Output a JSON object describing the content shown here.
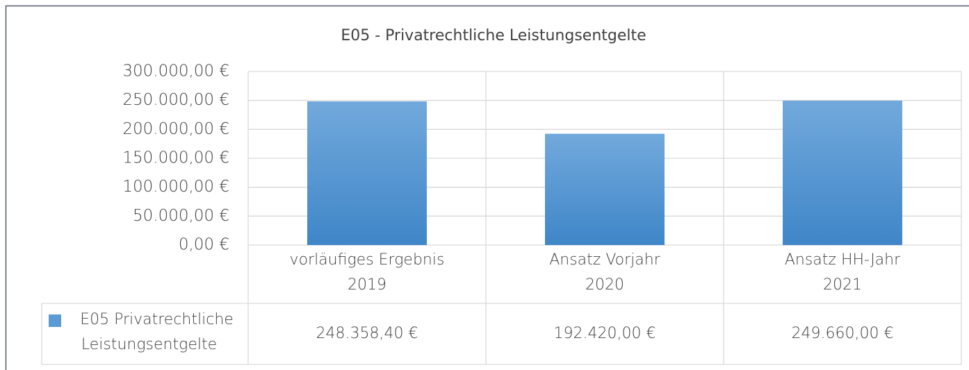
{
  "chart_data": {
    "type": "bar",
    "title": "E05 - Privatrechtliche Leistungsentgelte",
    "categories": [
      "vorläufiges Ergebnis\n2019",
      "Ansatz Vorjahr\n2020",
      "Ansatz HH-Jahr\n2021"
    ],
    "series": [
      {
        "name": "E05 Privatrechtliche\nLeistungsentgelte",
        "color": "#5b9bd5",
        "values": [
          248358.4,
          192420.0,
          249660.0
        ],
        "value_labels": [
          "248.358,40 €",
          "192.420,00 €",
          "249.660,00 €"
        ]
      }
    ],
    "ylim": [
      0,
      300000
    ],
    "yticks": [
      {
        "value": 0,
        "label": "0,00 €"
      },
      {
        "value": 50000,
        "label": "50.000,00 €"
      },
      {
        "value": 100000,
        "label": "100.000,00 €"
      },
      {
        "value": 150000,
        "label": "150.000,00 €"
      },
      {
        "value": 200000,
        "label": "200.000,00 €"
      },
      {
        "value": 250000,
        "label": "250.000,00 €"
      },
      {
        "value": 300000,
        "label": "300.000,00 €"
      }
    ],
    "grid": true,
    "data_table": true
  }
}
